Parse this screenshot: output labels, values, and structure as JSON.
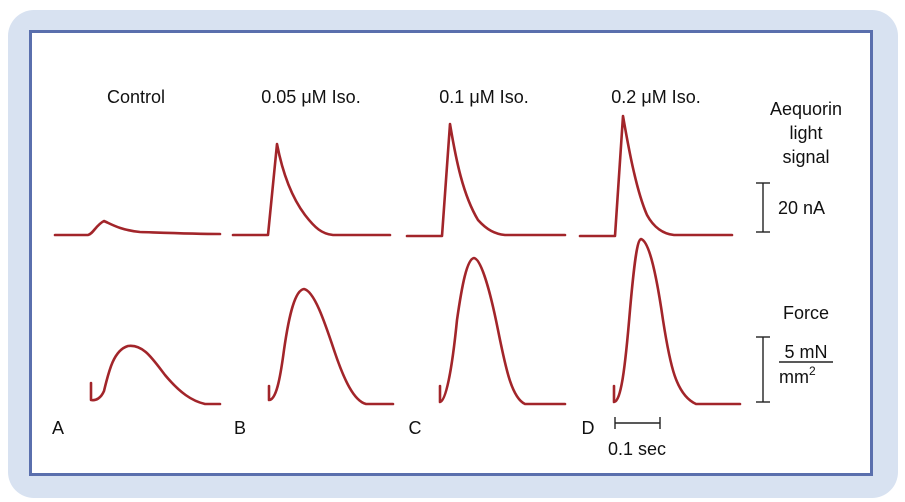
{
  "conditions": [
    {
      "letter": "A",
      "label": "Control"
    },
    {
      "letter": "B",
      "label": "0.05 μM Iso."
    },
    {
      "letter": "C",
      "label": "0.1 μM Iso."
    },
    {
      "letter": "D",
      "label": "0.2 μM Iso."
    }
  ],
  "legend": {
    "aequorin_line1": "Aequorin",
    "aequorin_line2": "light",
    "aequorin_line3": "signal",
    "aequorin_scale": "20 nA",
    "force_label": "Force",
    "force_scale_numerator": "5 mN",
    "force_scale_denominator_base": "mm",
    "force_scale_denominator_exp": "2"
  },
  "time_scale": "0.1 sec",
  "colors": {
    "trace": "#a2252a",
    "frame": "#5a6fad",
    "background": "#d8e2f1"
  }
}
